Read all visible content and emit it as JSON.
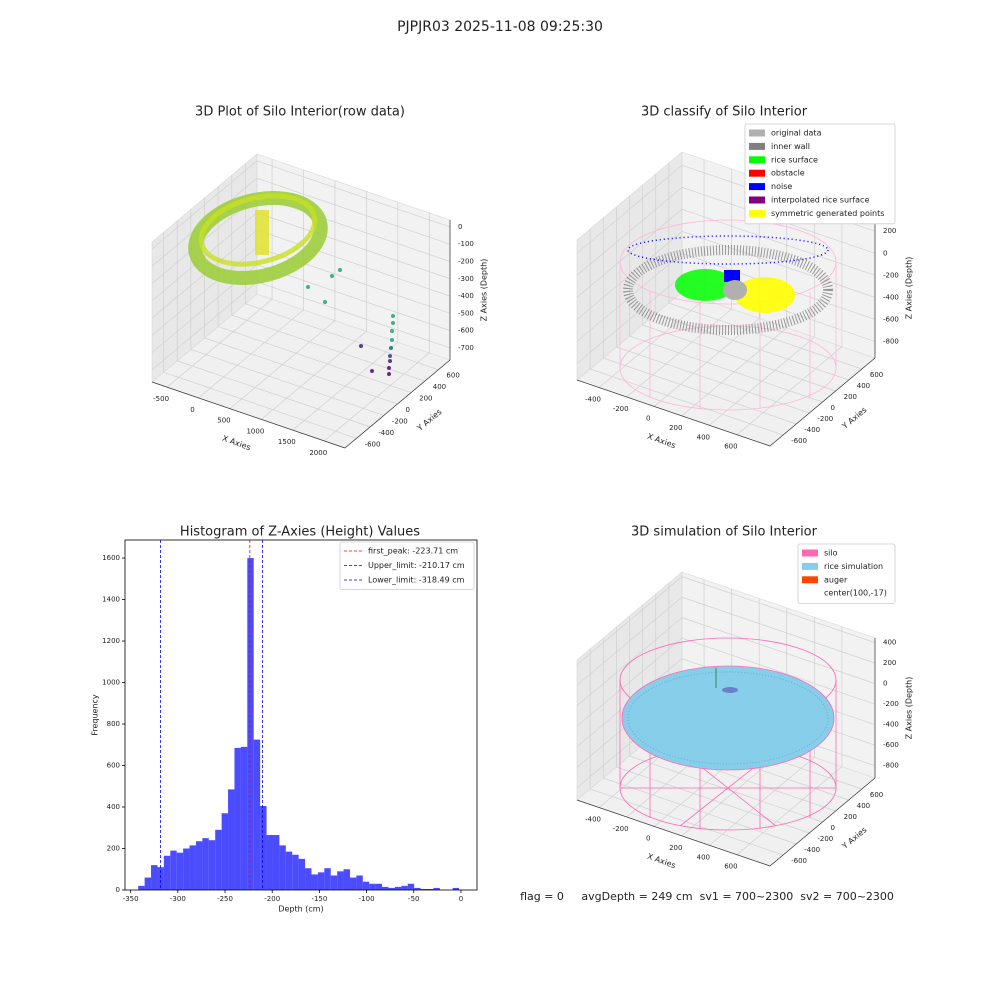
{
  "title": "PJPJR03 2025-11-08 09:25:30",
  "footer": "flag = 0     avgDepth = 249 cm  sv1 = 700~2300  sv2 = 700~2300",
  "chart_data": [
    {
      "type": "scatter3d",
      "title": "3D Plot of Silo Interior(row data)",
      "xlabel": "X Axies",
      "ylabel": "Y Axies",
      "zlabel": "Z Axies (Depth)",
      "xlim": [
        -740,
        2330
      ],
      "ylim": [
        -770,
        770
      ],
      "zlim": [
        -770,
        40
      ],
      "xticks": [
        -500,
        0,
        500,
        1000,
        1500,
        2000
      ],
      "yticks": [
        -600,
        -400,
        -200,
        0,
        200,
        400,
        600
      ],
      "zticks": [
        0,
        -100,
        -200,
        -300,
        -400,
        -500,
        -600,
        -700
      ]
    },
    {
      "type": "scatter3d",
      "title": "3D classify of Silo Interior",
      "xlabel": "X Axies",
      "ylabel": "Y Axies",
      "zlabel": "Z Axies (Depth)",
      "xlim": [
        -560,
        840
      ],
      "ylim": [
        -800,
        800
      ],
      "zlim": [
        -950,
        320
      ],
      "xticks": [
        -400,
        -200,
        0,
        200,
        400,
        600
      ],
      "yticks": [
        -600,
        -400,
        -200,
        0,
        200,
        400,
        600
      ],
      "zticks": [
        200,
        0,
        -200,
        -400,
        -600,
        -800
      ],
      "legend": [
        {
          "name": "original data",
          "color": "#b0b0b0"
        },
        {
          "name": "inner wall",
          "color": "#808080"
        },
        {
          "name": "rice surface",
          "color": "#00ff00"
        },
        {
          "name": "obstacle",
          "color": "#ff0000"
        },
        {
          "name": "noise",
          "color": "#0000ff"
        },
        {
          "name": "interpolated rice surface",
          "color": "#800080"
        },
        {
          "name": "symmetric generated points",
          "color": "#ffff00"
        }
      ]
    },
    {
      "type": "histogram",
      "title": "Histogram of Z-Axies (Height) Values",
      "xlabel": "Depth (cm)",
      "ylabel": "Frequency",
      "color": "#0000ff",
      "alpha": 0.7,
      "bins": [
        -342,
        -335.2,
        -328.4,
        -321.6,
        -314.8,
        -308,
        -301.2,
        -294.4,
        -287.6,
        -280.8,
        -274,
        -267.2,
        -260.4,
        -253.6,
        -246.8,
        -240,
        -233.2,
        -226.4,
        -219.6,
        -212.8,
        -206,
        -199.2,
        -192.4,
        -185.6,
        -178.8,
        -172,
        -165.2,
        -158.4,
        -151.6,
        -144.8,
        -138,
        -131.2,
        -124.4,
        -117.6,
        -110.8,
        -104,
        -97.2,
        -90.4,
        -83.6,
        -76.8,
        -70,
        -63.2,
        -56.4,
        -49.6,
        -42.8,
        -36,
        -29.2,
        -22.4,
        -15.6,
        -8.8,
        -2
      ],
      "counts": [
        20,
        60,
        120,
        110,
        165,
        190,
        180,
        200,
        215,
        235,
        250,
        240,
        290,
        370,
        485,
        685,
        690,
        1600,
        725,
        405,
        265,
        265,
        215,
        185,
        170,
        150,
        105,
        75,
        85,
        105,
        70,
        90,
        100,
        60,
        70,
        40,
        30,
        30,
        15,
        10,
        15,
        20,
        30,
        10,
        5,
        5,
        10,
        0,
        0,
        10
      ],
      "xlim": [
        -356,
        17
      ],
      "ylim": [
        0,
        1687
      ],
      "xticks": [
        -350,
        -300,
        -250,
        -200,
        -150,
        -100,
        -50,
        0
      ],
      "yticks": [
        0,
        200,
        400,
        600,
        800,
        1000,
        1200,
        1400,
        1600
      ],
      "vlines": [
        {
          "label": "first_peak: -223.71 cm",
          "value": -223.71,
          "color": "#ff0000"
        },
        {
          "label": "Upper_limit: -210.17 cm",
          "value": -210.17,
          "color": "#0000ff"
        },
        {
          "label": "Lower_limit: -318.49 cm",
          "value": -318.49,
          "color": "#0000ff"
        }
      ],
      "legend_loc": "upper right"
    },
    {
      "type": "surface3d",
      "title": "3D simulation of Silo Interior",
      "xlabel": "X Axies",
      "ylabel": "Y Axies",
      "zlabel": "Z Axies (Depth)",
      "xlim": [
        -560,
        840
      ],
      "ylim": [
        -800,
        800
      ],
      "zlim": [
        -920,
        445
      ],
      "xticks": [
        -400,
        -200,
        0,
        200,
        400,
        600
      ],
      "yticks": [
        -600,
        -400,
        -200,
        0,
        200,
        400,
        600
      ],
      "zticks": [
        400,
        200,
        0,
        -200,
        -400,
        -600,
        -800
      ],
      "legend": [
        {
          "name": "silo",
          "color": "#ff69b4"
        },
        {
          "name": "rice simulation",
          "color": "#87ceeb"
        },
        {
          "name": "auger",
          "color": "#ff4500"
        },
        {
          "name": "center(100,-17)",
          "color": "#ffffff"
        }
      ]
    }
  ]
}
